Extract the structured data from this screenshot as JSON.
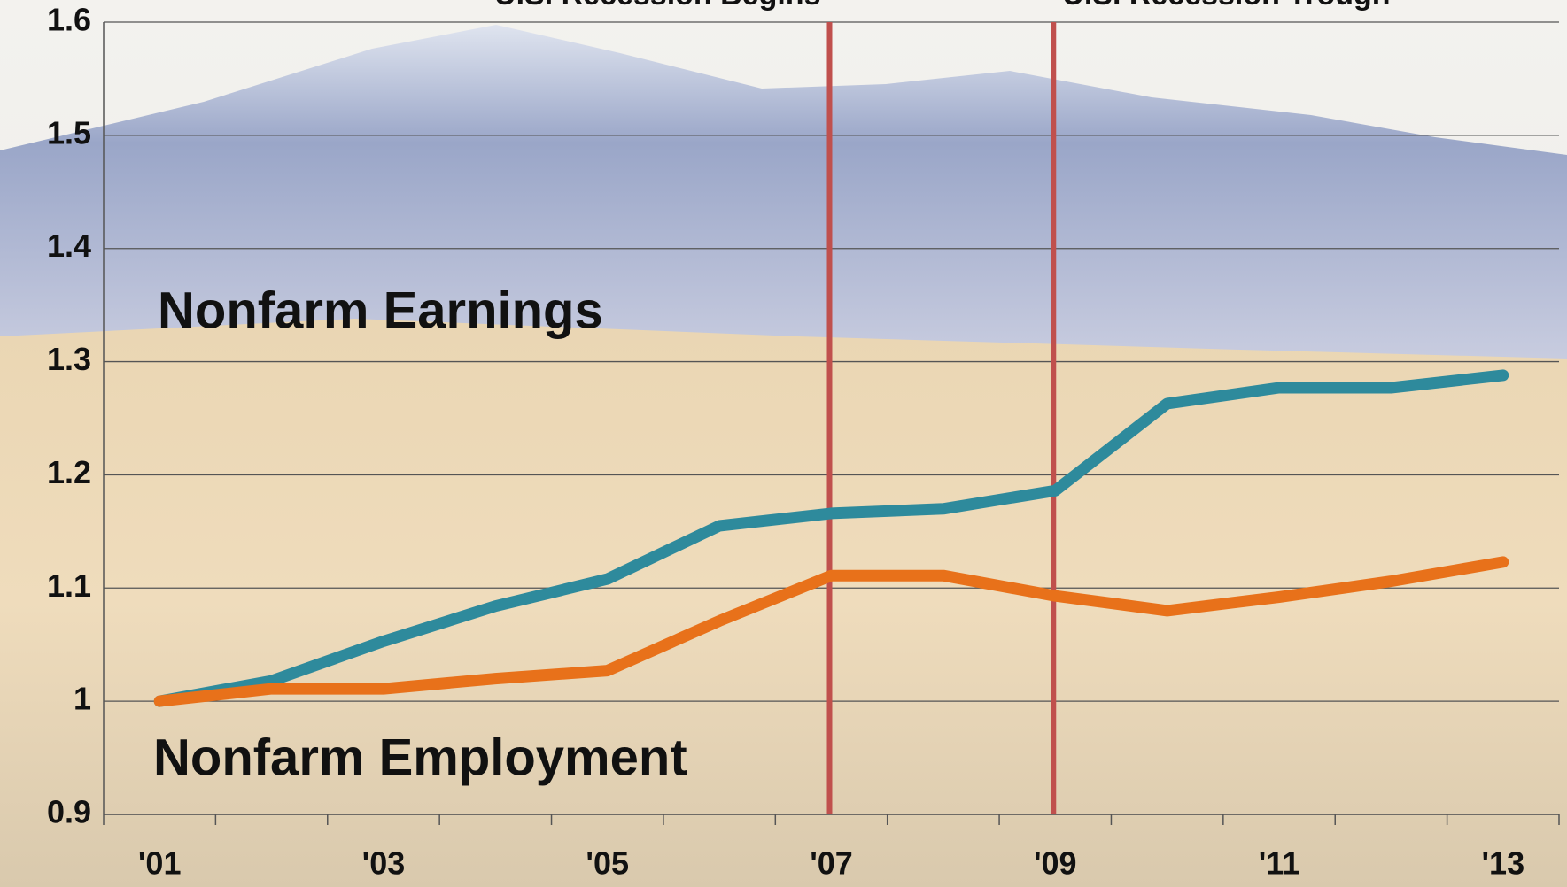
{
  "chart_data": {
    "type": "line",
    "categories": [
      "'01",
      null,
      "'03",
      null,
      "'05",
      null,
      "'07",
      null,
      "'09",
      null,
      "'11",
      null,
      "'13"
    ],
    "series": [
      {
        "name": "Nonfarm Earnings",
        "color": "#2e8a9c",
        "values": [
          1.0,
          1.018,
          1.053,
          1.084,
          1.108,
          1.155,
          1.166,
          1.17,
          1.186,
          1.263,
          1.277,
          1.277,
          1.288
        ]
      },
      {
        "name": "Nonfarm Employment",
        "color": "#e8711a",
        "values": [
          1.0,
          1.011,
          1.011,
          1.02,
          1.027,
          1.071,
          1.111,
          1.111,
          1.093,
          1.08,
          1.092,
          1.106,
          1.123
        ]
      }
    ],
    "ylim": [
      0.9,
      1.6
    ],
    "yticks": [
      0.9,
      1,
      1.1,
      1.2,
      1.3,
      1.4,
      1.5,
      1.6
    ],
    "grid": true,
    "annotations": [
      {
        "text": "U.S. Recession Begins",
        "category": "'07",
        "color": "#c0504d"
      },
      {
        "text": "U.S. Recession Trough",
        "category": "'09",
        "color": "#c0504d"
      }
    ]
  }
}
